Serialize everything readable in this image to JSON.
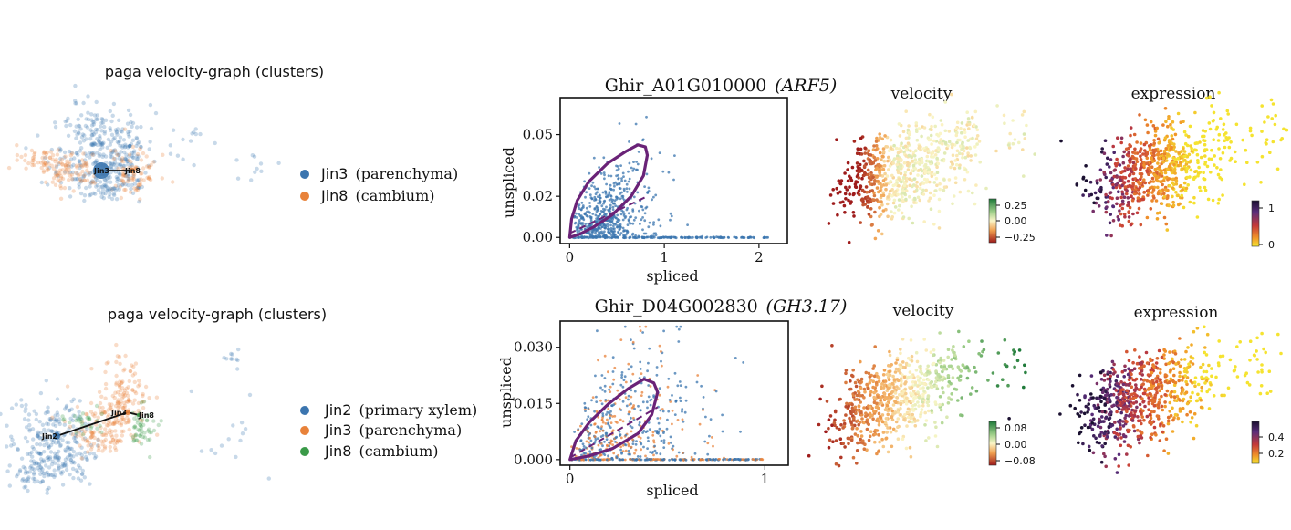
{
  "colors": {
    "blue": "#3b75af",
    "orange": "#e8823a",
    "green": "#3a9a48",
    "purple": "#6a2277",
    "edge": "#111111"
  },
  "rows": [
    {
      "umap": {
        "title": "paga velocity-graph (clusters)",
        "legend": [
          {
            "code": "Jin3",
            "desc": "(parenchyma)",
            "color": "#3b75af"
          },
          {
            "code": "Jin8",
            "desc": "(cambium)",
            "color": "#e8823a"
          }
        ],
        "node_labels": [
          "Jin3",
          "Jin8"
        ]
      },
      "phase": {
        "gene_id": "Ghir_A01G010000",
        "gene_name": "(ARF5)",
        "xlabel": "spliced",
        "ylabel": "unspliced",
        "xticks": [
          "0",
          "1",
          "2"
        ],
        "yticks": [
          "0.00",
          "0.02",
          "0.05"
        ]
      },
      "velocity": {
        "title": "velocity",
        "colorbar_ticks": [
          "0.25",
          "0.00",
          "−0.25"
        ]
      },
      "expression": {
        "title": "expression",
        "colorbar_ticks": [
          "1",
          "0"
        ]
      }
    },
    {
      "umap": {
        "title": "paga velocity-graph (clusters)",
        "legend": [
          {
            "code": "Jin2",
            "desc": "(primary xylem)",
            "color": "#3b75af"
          },
          {
            "code": "Jin3",
            "desc": "(parenchyma)",
            "color": "#e8823a"
          },
          {
            "code": "Jin8",
            "desc": "(cambium)",
            "color": "#3a9a48"
          }
        ],
        "node_labels": [
          "Jin2",
          "Jin3",
          "Jin8"
        ]
      },
      "phase": {
        "gene_id": "Ghir_D04G002830",
        "gene_name": "(GH3.17)",
        "xlabel": "spliced",
        "ylabel": "unspliced",
        "xticks": [
          "0",
          "1"
        ],
        "yticks": [
          "0.000",
          "0.015",
          "0.030"
        ]
      },
      "velocity": {
        "title": "velocity",
        "colorbar_ticks": [
          "0.08",
          "0.00",
          "−0.08"
        ]
      },
      "expression": {
        "title": "expression",
        "colorbar_ticks": [
          "0.4",
          "0.2"
        ]
      }
    }
  ],
  "chart_data": [
    {
      "type": "scatter",
      "title": "paga velocity-graph (clusters)",
      "series": [
        {
          "name": "Jin3 (parenchyma)"
        },
        {
          "name": "Jin8 (cambium)"
        }
      ],
      "edges": [
        [
          "Jin8",
          "Jin3"
        ]
      ]
    },
    {
      "type": "scatter",
      "title": "Ghir_A01G010000 (ARF5)",
      "xlabel": "spliced",
      "ylabel": "unspliced",
      "xlim": [
        -0.1,
        2.3
      ],
      "ylim": [
        -0.003,
        0.068
      ],
      "xticks": [
        0,
        1,
        2
      ],
      "yticks": [
        0,
        0.02,
        0.05
      ],
      "dynamics_curve": {
        "upper": [
          [
            0,
            0
          ],
          [
            0.02,
            0.009
          ],
          [
            0.08,
            0.018
          ],
          [
            0.2,
            0.027
          ],
          [
            0.4,
            0.036
          ],
          [
            0.6,
            0.042
          ],
          [
            0.72,
            0.045
          ],
          [
            0.8,
            0.044
          ],
          [
            0.82,
            0.04
          ]
        ],
        "lower": [
          [
            0.82,
            0.04
          ],
          [
            0.78,
            0.03
          ],
          [
            0.65,
            0.02
          ],
          [
            0.45,
            0.011
          ],
          [
            0.25,
            0.005
          ],
          [
            0.1,
            0.0015
          ],
          [
            0,
            0
          ]
        ]
      },
      "steady_state_line": [
        [
          0,
          0.002
        ],
        [
          0.82,
          0.02
        ]
      ]
    },
    {
      "type": "scatter",
      "title": "velocity",
      "colorbar": {
        "ticks": [
          0.25,
          0.0,
          -0.25
        ]
      }
    },
    {
      "type": "scatter",
      "title": "expression",
      "colorbar": {
        "ticks": [
          1,
          0
        ]
      }
    },
    {
      "type": "scatter",
      "title": "paga velocity-graph (clusters)",
      "series": [
        {
          "name": "Jin2 (primary xylem)"
        },
        {
          "name": "Jin3 (parenchyma)"
        },
        {
          "name": "Jin8 (cambium)"
        }
      ],
      "edges": [
        [
          "Jin2",
          "Jin3"
        ],
        [
          "Jin3",
          "Jin8"
        ]
      ]
    },
    {
      "type": "scatter",
      "title": "Ghir_D04G002830 (GH3.17)",
      "xlabel": "spliced",
      "ylabel": "unspliced",
      "xlim": [
        -0.05,
        1.12
      ],
      "ylim": [
        -0.0015,
        0.037
      ],
      "xticks": [
        0,
        1
      ],
      "yticks": [
        0,
        0.015,
        0.03
      ],
      "dynamics_curve": {
        "upper": [
          [
            0,
            0
          ],
          [
            0.03,
            0.005
          ],
          [
            0.1,
            0.01
          ],
          [
            0.2,
            0.015
          ],
          [
            0.3,
            0.019
          ],
          [
            0.38,
            0.0215
          ],
          [
            0.43,
            0.0205
          ],
          [
            0.45,
            0.018
          ]
        ],
        "lower": [
          [
            0.45,
            0.018
          ],
          [
            0.42,
            0.012
          ],
          [
            0.35,
            0.007
          ],
          [
            0.22,
            0.003
          ],
          [
            0.1,
            0.001
          ],
          [
            0,
            0
          ]
        ]
      },
      "steady_state_line": [
        [
          0,
          0.0005
        ],
        [
          0.45,
          0.014
        ]
      ]
    },
    {
      "type": "scatter",
      "title": "velocity",
      "colorbar": {
        "ticks": [
          0.08,
          0.0,
          -0.08
        ]
      }
    },
    {
      "type": "scatter",
      "title": "expression",
      "colorbar": {
        "ticks": [
          0.4,
          0.2
        ]
      }
    }
  ]
}
